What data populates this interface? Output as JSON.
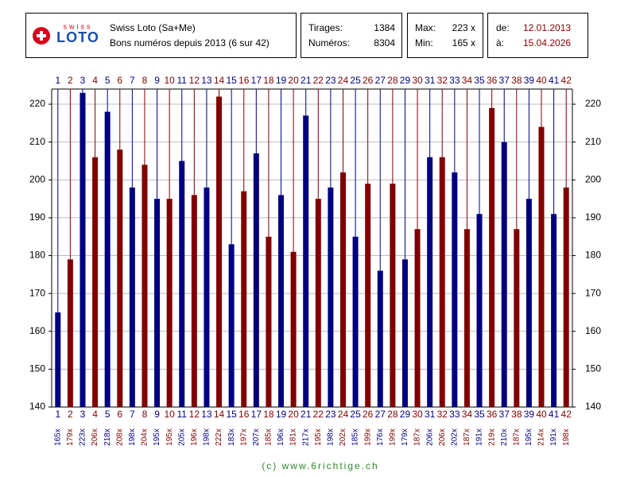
{
  "header": {
    "logo_small": "swiss",
    "logo": "LOTO",
    "title": "Swiss Loto (Sa+Me)",
    "subtitle": "Bons numéros depuis 2013 (6 sur 42)",
    "draws_label": "Tirages:",
    "draws": "1384",
    "numbers_label": "Numéros:",
    "numbers": "8304",
    "max_label": "Max:",
    "max": "223 x",
    "min_label": "Min:",
    "min": "165 x",
    "from_label": "de:",
    "from": "12.01.2013",
    "to_label": "à:",
    "to": "15.04.2026"
  },
  "chart_data": {
    "type": "bar",
    "categories": [
      "1",
      "2",
      "3",
      "4",
      "5",
      "6",
      "7",
      "8",
      "9",
      "10",
      "11",
      "12",
      "13",
      "14",
      "15",
      "16",
      "17",
      "18",
      "19",
      "20",
      "21",
      "22",
      "23",
      "24",
      "25",
      "26",
      "27",
      "28",
      "29",
      "30",
      "31",
      "32",
      "33",
      "34",
      "35",
      "36",
      "37",
      "38",
      "39",
      "40",
      "41",
      "42"
    ],
    "values": [
      165,
      179,
      223,
      206,
      218,
      208,
      198,
      204,
      195,
      195,
      205,
      196,
      198,
      222,
      183,
      197,
      207,
      185,
      196,
      181,
      217,
      195,
      198,
      202,
      185,
      199,
      176,
      199,
      179,
      187,
      206,
      206,
      202,
      187,
      191,
      219,
      210,
      187,
      195,
      214,
      191,
      198
    ],
    "value_labels": [
      "165x",
      "179x",
      "223x",
      "206x",
      "218x",
      "208x",
      "198x",
      "204x",
      "195x",
      "195x",
      "205x",
      "196x",
      "198x",
      "222x",
      "183x",
      "197x",
      "207x",
      "185x",
      "196x",
      "181x",
      "217x",
      "195x",
      "198x",
      "202x",
      "185x",
      "199x",
      "176x",
      "199x",
      "179x",
      "187x",
      "206x",
      "206x",
      "202x",
      "187x",
      "191x",
      "219x",
      "210x",
      "187x",
      "195x",
      "214x",
      "191x",
      "198x"
    ],
    "colors": [
      "#000080",
      "#800000"
    ],
    "ylim": [
      140,
      224
    ],
    "yticks": [
      140,
      150,
      160,
      170,
      180,
      190,
      200,
      210,
      220
    ],
    "grid": true
  },
  "footer": "(c) www.6richtige.ch"
}
